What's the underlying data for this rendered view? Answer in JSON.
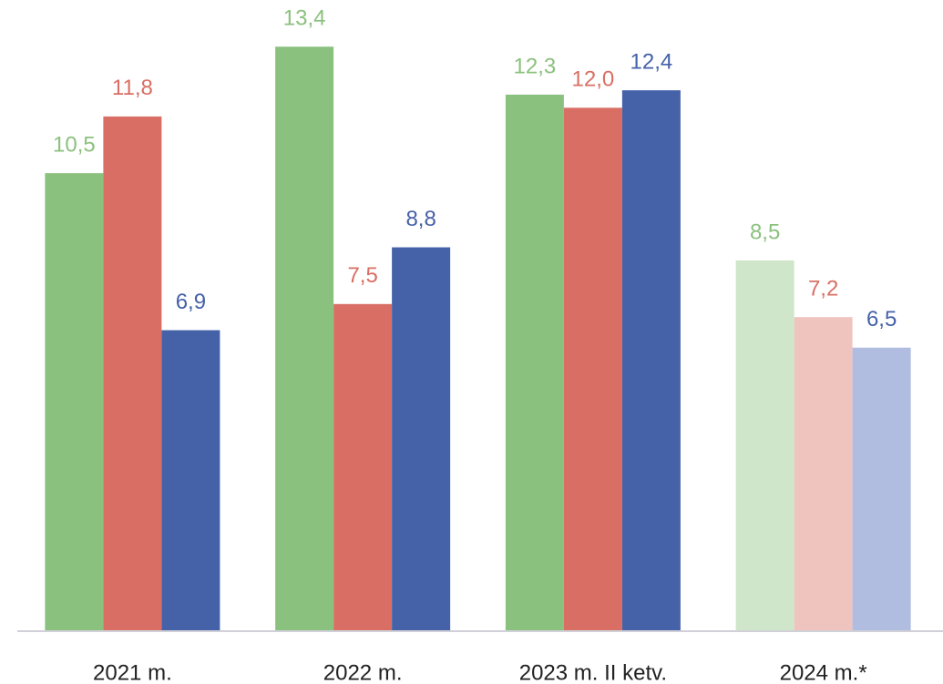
{
  "chart_data": {
    "type": "bar",
    "categories": [
      "2021 m.",
      "2022 m.",
      "2023 m. II ketv.",
      "2024 m.*"
    ],
    "series": [
      {
        "color": "#8bc17e",
        "colors": [
          "#8bc17e",
          "#8bc17e",
          "#8bc17e",
          "#cfe6ca"
        ],
        "values": [
          10.5,
          13.4,
          12.3,
          8.5
        ],
        "value_labels": [
          "10,5",
          "13,4",
          "12,3",
          "8,5"
        ]
      },
      {
        "color": "#d96f64",
        "colors": [
          "#d96f64",
          "#d96f64",
          "#d96f64",
          "#efc4bf"
        ],
        "values": [
          11.8,
          7.5,
          12.0,
          7.2
        ],
        "value_labels": [
          "11,8",
          "7,5",
          "12,0",
          "7,2"
        ]
      },
      {
        "color": "#4561a8",
        "colors": [
          "#4561a8",
          "#4561a8",
          "#4561a8",
          "#b0bce0"
        ],
        "values": [
          6.9,
          8.8,
          12.4,
          6.5
        ],
        "value_labels": [
          "6,9",
          "8,8",
          "12,4",
          "6,5"
        ]
      }
    ],
    "ylim": [
      0,
      14.47
    ]
  }
}
